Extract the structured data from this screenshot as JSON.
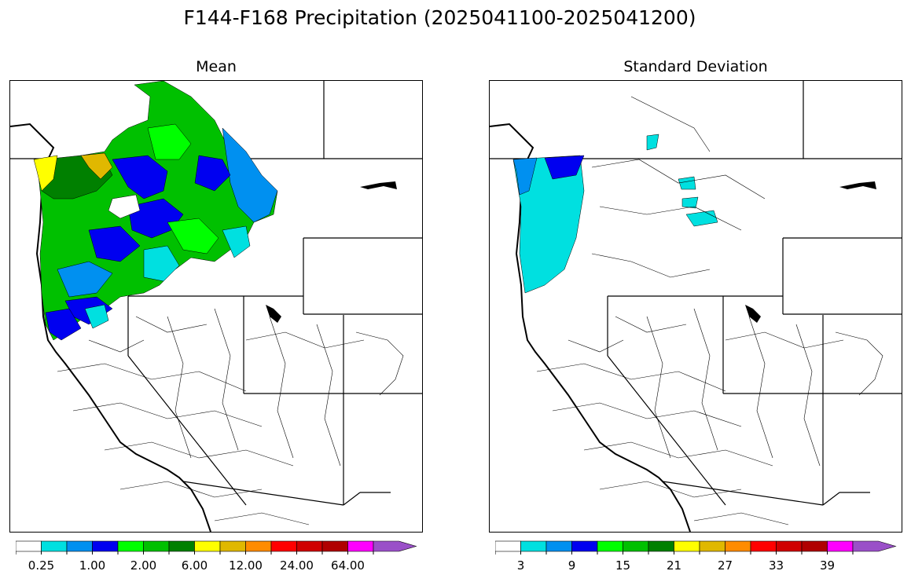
{
  "title": "F144-F168 Precipitation (2025041100-2025041200)",
  "panels": {
    "mean": {
      "subtitle": "Mean"
    },
    "std": {
      "subtitle": "Standard Deviation"
    }
  },
  "colorbar_colors": [
    "#ffffff",
    "#00e0e0",
    "#0090f0",
    "#0000f0",
    "#00ff00",
    "#00c000",
    "#008000",
    "#ffff00",
    "#e0b800",
    "#ff8c00",
    "#ff0000",
    "#d00000",
    "#b00000",
    "#ff00ff",
    "#9a50c8"
  ],
  "mean_colorbar": {
    "ticks": [
      "0.25",
      "1.00",
      "2.00",
      "6.00",
      "12.00",
      "24.00",
      "64.00"
    ]
  },
  "std_colorbar": {
    "ticks": [
      "3",
      "9",
      "15",
      "21",
      "27",
      "33",
      "39"
    ]
  }
}
